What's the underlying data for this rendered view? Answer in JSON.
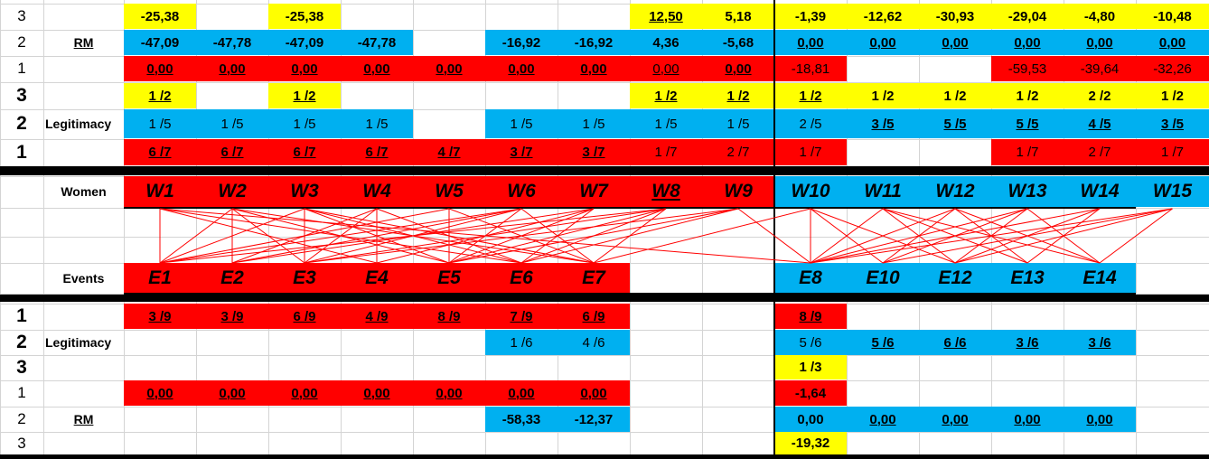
{
  "colors": {
    "Y": "#ffff00",
    "B": "#00b0f0",
    "R": "#ff0000",
    "line": "#ff0000"
  },
  "rows": [
    {
      "id": "rm-top-3",
      "rownum": "3",
      "label": "",
      "size": "v",
      "cells": [
        [
          "-25,38",
          "Y",
          "b"
        ],
        null,
        [
          "-25,38",
          "Y",
          "b"
        ],
        null,
        null,
        null,
        null,
        [
          "12,50",
          "Y",
          "bu"
        ],
        [
          "5,18",
          "Y",
          "b"
        ],
        [
          "-1,39",
          "Y",
          "b"
        ],
        [
          "-12,62",
          "Y",
          "b"
        ],
        [
          "-30,93",
          "Y",
          "b"
        ],
        [
          "-29,04",
          "Y",
          "b"
        ],
        [
          "-4,80",
          "Y",
          "b"
        ],
        [
          "-10,48",
          "Y",
          "b"
        ]
      ]
    },
    {
      "id": "rm-top-2",
      "rownum": "2",
      "label": "RM",
      "size": "v",
      "cells": [
        [
          "-47,09",
          "B",
          "b"
        ],
        [
          "-47,78",
          "B",
          "b"
        ],
        [
          "-47,09",
          "B",
          "b"
        ],
        [
          "-47,78",
          "B",
          "b"
        ],
        null,
        [
          "-16,92",
          "B",
          "b"
        ],
        [
          "-16,92",
          "B",
          "b"
        ],
        [
          "4,36",
          "B",
          "b"
        ],
        [
          "-5,68",
          "B",
          "b"
        ],
        [
          "0,00",
          "B",
          "bu"
        ],
        [
          "0,00",
          "B",
          "bu"
        ],
        [
          "0,00",
          "B",
          "bu"
        ],
        [
          "0,00",
          "B",
          "bu"
        ],
        [
          "0,00",
          "B",
          "bu"
        ],
        [
          "0,00",
          "B",
          "bu"
        ]
      ]
    },
    {
      "id": "rm-top-1",
      "rownum": "1",
      "label": "",
      "size": "v",
      "cells": [
        [
          "0,00",
          "R",
          "bu"
        ],
        [
          "0,00",
          "R",
          "bu"
        ],
        [
          "0,00",
          "R",
          "bu"
        ],
        [
          "0,00",
          "R",
          "bu"
        ],
        [
          "0,00",
          "R",
          "bu"
        ],
        [
          "0,00",
          "R",
          "bu"
        ],
        [
          "0,00",
          "R",
          "bu"
        ],
        [
          "0,00",
          "R",
          "u"
        ],
        [
          "0,00",
          "R",
          "bu"
        ],
        [
          "-18,81",
          "R",
          ""
        ],
        null,
        null,
        [
          "-59,53",
          "R",
          ""
        ],
        [
          "-39,64",
          "R",
          ""
        ],
        [
          "-32,26",
          "R",
          ""
        ]
      ]
    },
    {
      "id": "leg-top-3",
      "rownum": "3",
      "label": "",
      "size": "v",
      "cells": [
        [
          "1 /2",
          "Y",
          "bu"
        ],
        null,
        [
          "1 /2",
          "Y",
          "bu"
        ],
        null,
        null,
        null,
        null,
        [
          "1 /2",
          "Y",
          "bu"
        ],
        [
          "1 /2",
          "Y",
          "bu"
        ],
        [
          "1 /2",
          "Y",
          "bu"
        ],
        [
          "1 /2",
          "Y",
          "b"
        ],
        [
          "1 /2",
          "Y",
          "b"
        ],
        [
          "1 /2",
          "Y",
          "b"
        ],
        [
          "2 /2",
          "Y",
          "b"
        ],
        [
          "1 /2",
          "Y",
          "b"
        ]
      ]
    },
    {
      "id": "leg-top-2",
      "rownum": "2",
      "label": "Legitimacy",
      "size": "v",
      "cells": [
        [
          "1 /5",
          "B",
          ""
        ],
        [
          "1 /5",
          "B",
          ""
        ],
        [
          "1 /5",
          "B",
          ""
        ],
        [
          "1 /5",
          "B",
          ""
        ],
        null,
        [
          "1 /5",
          "B",
          ""
        ],
        [
          "1 /5",
          "B",
          ""
        ],
        [
          "1 /5",
          "B",
          ""
        ],
        [
          "1 /5",
          "B",
          ""
        ],
        [
          "2 /5",
          "B",
          ""
        ],
        [
          "3 /5",
          "B",
          "bu"
        ],
        [
          "5 /5",
          "B",
          "bu"
        ],
        [
          "5 /5",
          "B",
          "bu"
        ],
        [
          "4 /5",
          "B",
          "bu"
        ],
        [
          "3 /5",
          "B",
          "bu"
        ]
      ]
    },
    {
      "id": "leg-top-1",
      "rownum": "1",
      "label": "",
      "size": "v",
      "cells": [
        [
          "6 /7",
          "R",
          "bu"
        ],
        [
          "6 /7",
          "R",
          "bu"
        ],
        [
          "6 /7",
          "R",
          "bu"
        ],
        [
          "6 /7",
          "R",
          "bu"
        ],
        [
          "4 /7",
          "R",
          "bu"
        ],
        [
          "3 /7",
          "R",
          "bu"
        ],
        [
          "3 /7",
          "R",
          "bu"
        ],
        [
          "1 /7",
          "R",
          ""
        ],
        [
          "2 /7",
          "R",
          ""
        ],
        [
          "1 /7",
          "R",
          ""
        ],
        null,
        null,
        [
          "1 /7",
          "R",
          ""
        ],
        [
          "2 /7",
          "R",
          ""
        ],
        [
          "1 /7",
          "R",
          ""
        ]
      ]
    },
    {
      "id": "women",
      "rownum": "",
      "label": "Women",
      "size": "big",
      "cells": [
        [
          "W1",
          "R",
          "big"
        ],
        [
          "W2",
          "R",
          "big"
        ],
        [
          "W3",
          "R",
          "big"
        ],
        [
          "W4",
          "R",
          "big"
        ],
        [
          "W5",
          "R",
          "big"
        ],
        [
          "W6",
          "R",
          "big"
        ],
        [
          "W7",
          "R",
          "big"
        ],
        [
          "W8",
          "R",
          "bigiu"
        ],
        [
          "W9",
          "R",
          "big"
        ],
        [
          "W10",
          "B",
          "big"
        ],
        [
          "W11",
          "B",
          "big"
        ],
        [
          "W12",
          "B",
          "big"
        ],
        [
          "W13",
          "B",
          "big"
        ],
        [
          "W14",
          "B",
          "big"
        ],
        [
          "W15",
          "B",
          "big"
        ]
      ]
    },
    {
      "id": "events",
      "rownum": "",
      "label": "Events",
      "size": "big",
      "cells": [
        [
          "E1",
          "R",
          "big"
        ],
        [
          "E2",
          "R",
          "big"
        ],
        [
          "E3",
          "R",
          "big"
        ],
        [
          "E4",
          "R",
          "big"
        ],
        [
          "E5",
          "R",
          "big"
        ],
        [
          "E6",
          "R",
          "big"
        ],
        [
          "E7",
          "R",
          "big"
        ],
        null,
        null,
        [
          "E8",
          "B",
          "big"
        ],
        [
          "E10",
          "B",
          "big"
        ],
        [
          "E12",
          "B",
          "big"
        ],
        [
          "E13",
          "B",
          "big"
        ],
        [
          "E14",
          "B",
          "big"
        ],
        null
      ]
    },
    {
      "id": "leg-bot-1",
      "rownum": "1",
      "label": "",
      "size": "v",
      "cells": [
        [
          "3 /9",
          "R",
          "bu"
        ],
        [
          "3 /9",
          "R",
          "bu"
        ],
        [
          "6 /9",
          "R",
          "bu"
        ],
        [
          "4 /9",
          "R",
          "bu"
        ],
        [
          "8 /9",
          "R",
          "bu"
        ],
        [
          "7 /9",
          "R",
          "bu"
        ],
        [
          "6 /9",
          "R",
          "bu"
        ],
        null,
        null,
        [
          "8 /9",
          "R",
          "bu"
        ],
        null,
        null,
        null,
        null,
        null
      ]
    },
    {
      "id": "leg-bot-2",
      "rownum": "2",
      "label": "Legitimacy",
      "size": "v",
      "cells": [
        null,
        null,
        null,
        null,
        null,
        [
          "1 /6",
          "B",
          ""
        ],
        [
          "4 /6",
          "B",
          ""
        ],
        null,
        null,
        [
          "5 /6",
          "B",
          ""
        ],
        [
          "5 /6",
          "B",
          "bu"
        ],
        [
          "6 /6",
          "B",
          "bu"
        ],
        [
          "3 /6",
          "B",
          "bu"
        ],
        [
          "3 /6",
          "B",
          "bu"
        ],
        null
      ]
    },
    {
      "id": "leg-bot-3",
      "rownum": "3",
      "label": "",
      "size": "v",
      "cells": [
        null,
        null,
        null,
        null,
        null,
        null,
        null,
        null,
        null,
        [
          "1 /3",
          "Y",
          "b"
        ],
        null,
        null,
        null,
        null,
        null
      ]
    },
    {
      "id": "rm-bot-1",
      "rownum": "1",
      "label": "",
      "size": "v",
      "cells": [
        [
          "0,00",
          "R",
          "bu"
        ],
        [
          "0,00",
          "R",
          "bu"
        ],
        [
          "0,00",
          "R",
          "bu"
        ],
        [
          "0,00",
          "R",
          "bu"
        ],
        [
          "0,00",
          "R",
          "bu"
        ],
        [
          "0,00",
          "R",
          "bu"
        ],
        [
          "0,00",
          "R",
          "bu"
        ],
        null,
        null,
        [
          "-1,64",
          "R",
          "b"
        ],
        null,
        null,
        null,
        null,
        null
      ]
    },
    {
      "id": "rm-bot-2",
      "rownum": "2",
      "label": "RM",
      "size": "v",
      "cells": [
        null,
        null,
        null,
        null,
        null,
        [
          "-58,33",
          "B",
          "b"
        ],
        [
          "-12,37",
          "B",
          "b"
        ],
        null,
        null,
        [
          "0,00",
          "B",
          "b"
        ],
        [
          "0,00",
          "B",
          "bu"
        ],
        [
          "0,00",
          "B",
          "bu"
        ],
        [
          "0,00",
          "B",
          "bu"
        ],
        [
          "0,00",
          "B",
          "bu"
        ],
        null
      ]
    },
    {
      "id": "rm-bot-3",
      "rownum": "3",
      "label": "",
      "size": "v",
      "cells": [
        null,
        null,
        null,
        null,
        null,
        null,
        null,
        null,
        null,
        [
          "-19,32",
          "Y",
          "b"
        ],
        null,
        null,
        null,
        null,
        null
      ]
    }
  ],
  "links": [
    [
      "W1",
      "E1"
    ],
    [
      "W1",
      "E6"
    ],
    [
      "W1",
      "E8"
    ],
    [
      "W2",
      "E1"
    ],
    [
      "W2",
      "E2"
    ],
    [
      "W2",
      "E3"
    ],
    [
      "W2",
      "E5"
    ],
    [
      "W3",
      "E1"
    ],
    [
      "W3",
      "E3"
    ],
    [
      "W3",
      "E5"
    ],
    [
      "W3",
      "E6"
    ],
    [
      "W4",
      "E2"
    ],
    [
      "W4",
      "E3"
    ],
    [
      "W4",
      "E4"
    ],
    [
      "W4",
      "E6"
    ],
    [
      "W5",
      "E1"
    ],
    [
      "W5",
      "E5"
    ],
    [
      "W5",
      "E7"
    ],
    [
      "W6",
      "E2"
    ],
    [
      "W6",
      "E3"
    ],
    [
      "W6",
      "E5"
    ],
    [
      "W6",
      "E7"
    ],
    [
      "W7",
      "E4"
    ],
    [
      "W7",
      "E5"
    ],
    [
      "W7",
      "E6"
    ],
    [
      "W8",
      "E3"
    ],
    [
      "W8",
      "E5"
    ],
    [
      "W8",
      "E6"
    ],
    [
      "W8",
      "E7"
    ],
    [
      "W9",
      "E5"
    ],
    [
      "W9",
      "E6"
    ],
    [
      "W9",
      "E8"
    ],
    [
      "W10",
      "E7"
    ],
    [
      "W10",
      "E8"
    ],
    [
      "W10",
      "E10"
    ],
    [
      "W10",
      "E12"
    ],
    [
      "W11",
      "E8"
    ],
    [
      "W11",
      "E12"
    ],
    [
      "W11",
      "E13"
    ],
    [
      "W12",
      "E10"
    ],
    [
      "W12",
      "E13"
    ],
    [
      "W12",
      "E14"
    ],
    [
      "W13",
      "E8"
    ],
    [
      "W13",
      "E10"
    ],
    [
      "W13",
      "E14"
    ],
    [
      "W14",
      "E8"
    ],
    [
      "W14",
      "E12"
    ],
    [
      "W14",
      "E13"
    ],
    [
      "W15",
      "E10"
    ],
    [
      "W15",
      "E12"
    ],
    [
      "W15",
      "E14"
    ],
    [
      "W2",
      "E7"
    ],
    [
      "W3",
      "E7"
    ],
    [
      "W1",
      "E4"
    ],
    [
      "W6",
      "E1"
    ],
    [
      "W7",
      "E2"
    ],
    [
      "W9",
      "E3"
    ],
    [
      "W8",
      "E1"
    ],
    [
      "W12",
      "E8"
    ],
    [
      "W11",
      "E14"
    ],
    [
      "W13",
      "E12"
    ],
    [
      "W15",
      "E8"
    ]
  ]
}
